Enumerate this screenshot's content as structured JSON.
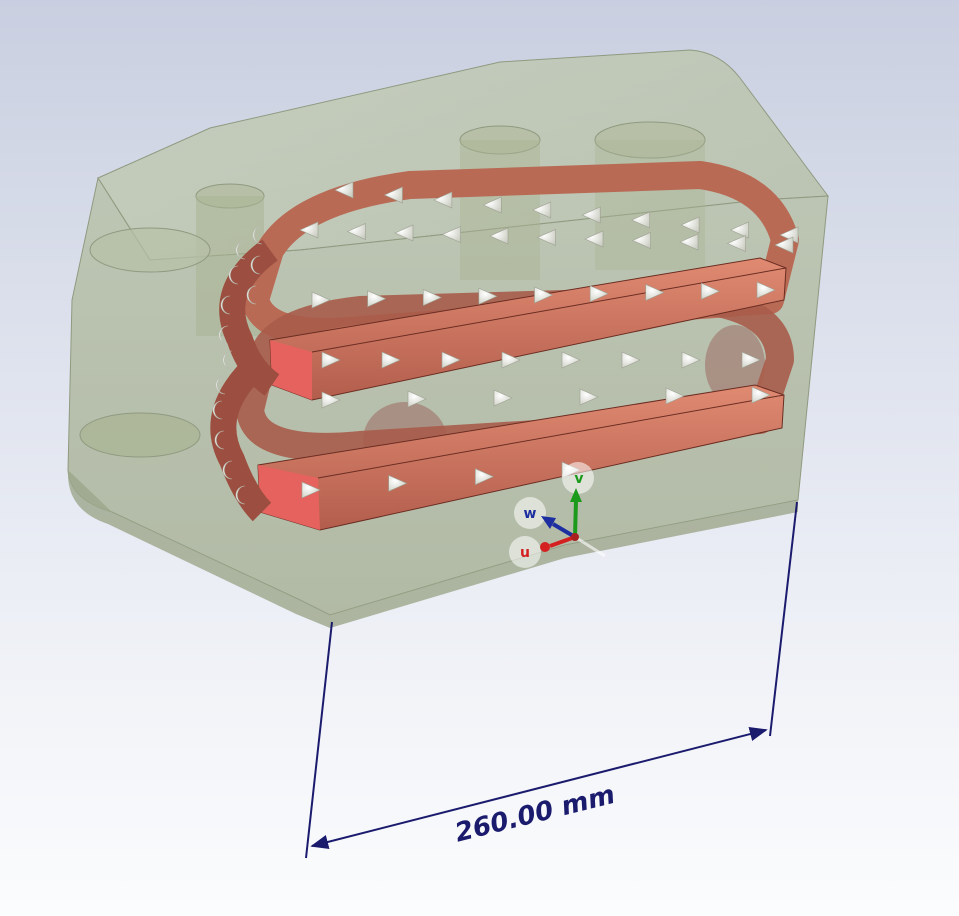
{
  "view": {
    "background_top": "#c9cfe0",
    "background_bottom": "#fbfcfd"
  },
  "model": {
    "housing_color": "#a9b59a",
    "coil_color": "#c8705c",
    "arrow_color": "#e8eadf"
  },
  "dimension": {
    "label": "260.00 mm",
    "line_color": "#1b1b6e"
  },
  "axes": {
    "u_label": "u",
    "v_label": "v",
    "w_label": "w",
    "u_color": "#d42020",
    "v_color": "#1c9a1c",
    "w_color": "#1c2ea0"
  }
}
